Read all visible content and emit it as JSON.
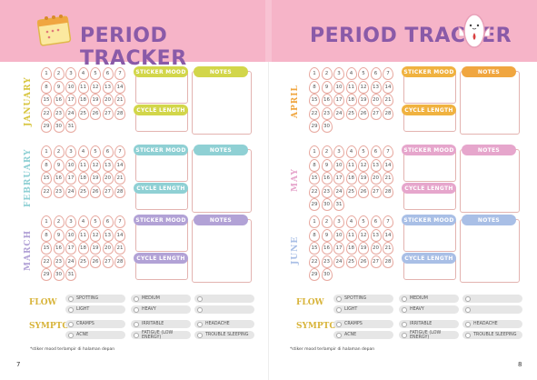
{
  "left_page": {
    "title": "PERIOD TRACKER",
    "page_number": "7",
    "note": "*stiker mood terlampir di halaman depan",
    "months": [
      {
        "name": "JANUARY",
        "color": "#d8c640",
        "mood_color": "#d2d64a",
        "notes_color": "#d2d64a"
      },
      {
        "name": "FEBRUARY",
        "color": "#8fd0d4",
        "mood_color": "#8fd0d4",
        "notes_color": "#8fd0d4"
      },
      {
        "name": "MARCH",
        "color": "#b2a2d6",
        "mood_color": "#b2a2d6",
        "notes_color": "#b2a2d6"
      }
    ]
  },
  "right_page": {
    "title": "PERIOD TRACKER",
    "page_number": "8",
    "note": "*stiker mood terlampir di halaman depan",
    "months": [
      {
        "name": "APRIL",
        "color": "#f0a640",
        "mood_color": "#f0b240",
        "notes_color": "#f0a640"
      },
      {
        "name": "MAY",
        "color": "#e6a6cc",
        "mood_color": "#e6a6cc",
        "notes_color": "#e6a6cc"
      },
      {
        "name": "JUNE",
        "color": "#a9bfe6",
        "mood_color": "#a9bfe6",
        "notes_color": "#a9bfe6"
      }
    ]
  },
  "labels": {
    "sticker_mood": "STICKER MOOD",
    "cycle_length": "CYCLE LENGTH",
    "notes": "NOTES",
    "flow": "FLOW",
    "symptoms": "SYMPTOMS"
  },
  "flow_options": [
    "SPOTTING",
    "MEDIUM",
    "",
    "LIGHT",
    "HEAVY",
    ""
  ],
  "symptom_options": [
    "CRAMPS",
    "IRRITABLE",
    "HEADACHE",
    "ACNE",
    "FATIGUE (LOW ENERGY)",
    "TROUBLE SLEEPING"
  ],
  "days": [
    "1",
    "2",
    "3",
    "4",
    "5",
    "6",
    "7",
    "8",
    "9",
    "10",
    "11",
    "12",
    "13",
    "14",
    "15",
    "16",
    "17",
    "18",
    "19",
    "20",
    "21",
    "22",
    "23",
    "24",
    "25",
    "26",
    "27",
    "28",
    "29",
    "30",
    "31"
  ],
  "month_lengths": {
    "JANUARY": 31,
    "FEBRUARY": 28,
    "MARCH": 31,
    "APRIL": 30,
    "MAY": 31,
    "JUNE": 30
  }
}
